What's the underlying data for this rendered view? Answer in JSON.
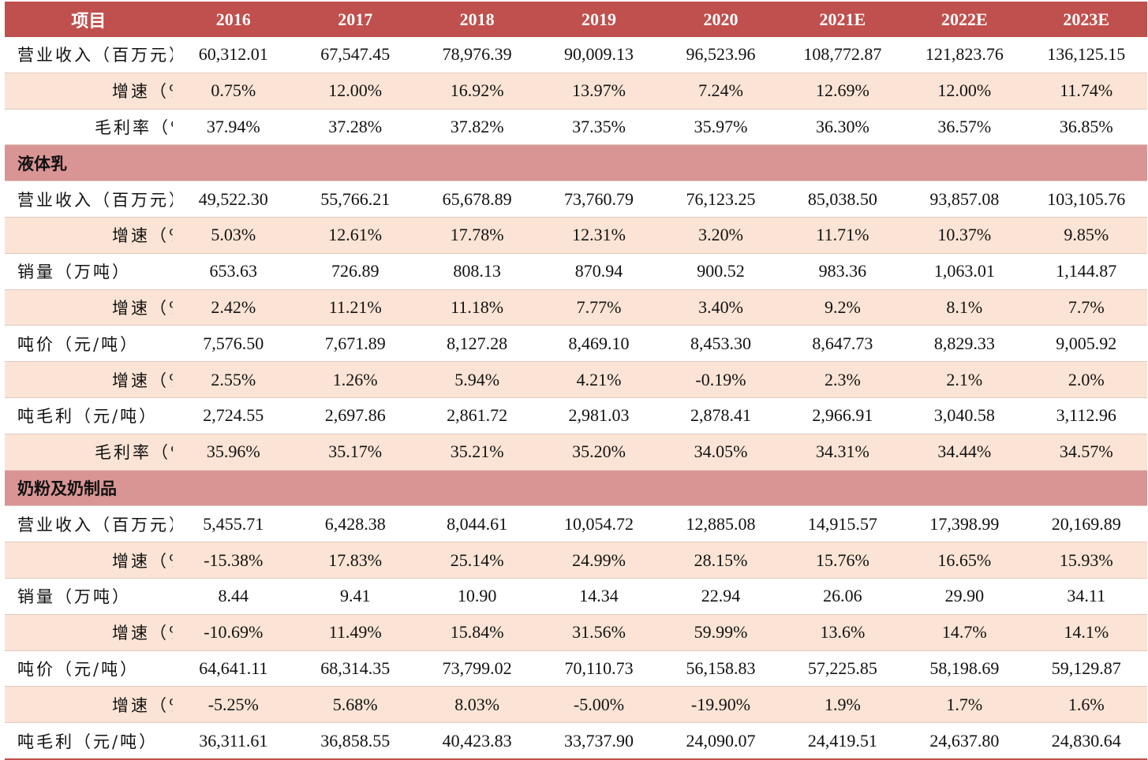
{
  "header": [
    "项目",
    "2016",
    "2017",
    "2018",
    "2019",
    "2020",
    "2021E",
    "2022E",
    "2023E"
  ],
  "rows": [
    {
      "kind": "data",
      "indent": 0,
      "shade": false,
      "label": "营业收入（百万元）",
      "values": [
        "60,312.01",
        "67,547.45",
        "78,976.39",
        "90,009.13",
        "96,523.96",
        "108,772.87",
        "121,823.76",
        "136,125.15"
      ]
    },
    {
      "kind": "data",
      "indent": 1,
      "shade": true,
      "label": "增速（%）",
      "values": [
        "0.75%",
        "12.00%",
        "16.92%",
        "13.97%",
        "7.24%",
        "12.69%",
        "12.00%",
        "11.74%"
      ]
    },
    {
      "kind": "data",
      "indent": 2,
      "shade": false,
      "label": "毛利率（%）",
      "values": [
        "37.94%",
        "37.28%",
        "37.82%",
        "37.35%",
        "35.97%",
        "36.30%",
        "36.57%",
        "36.85%"
      ]
    },
    {
      "kind": "section",
      "label": "液体乳"
    },
    {
      "kind": "data",
      "indent": 0,
      "shade": false,
      "label": "营业收入（百万元）",
      "values": [
        "49,522.30",
        "55,766.21",
        "65,678.89",
        "73,760.79",
        "76,123.25",
        "85,038.50",
        "93,857.08",
        "103,105.76"
      ]
    },
    {
      "kind": "data",
      "indent": 1,
      "shade": true,
      "label": "增速（%）",
      "values": [
        "5.03%",
        "12.61%",
        "17.78%",
        "12.31%",
        "3.20%",
        "11.71%",
        "10.37%",
        "9.85%"
      ]
    },
    {
      "kind": "data",
      "indent": 0,
      "shade": false,
      "label": "销量（万吨）",
      "values": [
        "653.63",
        "726.89",
        "808.13",
        "870.94",
        "900.52",
        "983.36",
        "1,063.01",
        "1,144.87"
      ]
    },
    {
      "kind": "data",
      "indent": 1,
      "shade": true,
      "label": "增速（%）",
      "values": [
        "2.42%",
        "11.21%",
        "11.18%",
        "7.77%",
        "3.40%",
        "9.2%",
        "8.1%",
        "7.7%"
      ]
    },
    {
      "kind": "data",
      "indent": 0,
      "shade": false,
      "label": "吨价（元/吨）",
      "values": [
        "7,576.50",
        "7,671.89",
        "8,127.28",
        "8,469.10",
        "8,453.30",
        "8,647.73",
        "8,829.33",
        "9,005.92"
      ]
    },
    {
      "kind": "data",
      "indent": 1,
      "shade": true,
      "label": "增速（%）",
      "values": [
        "2.55%",
        "1.26%",
        "5.94%",
        "4.21%",
        "-0.19%",
        "2.3%",
        "2.1%",
        "2.0%"
      ]
    },
    {
      "kind": "data",
      "indent": 0,
      "shade": false,
      "label": "吨毛利（元/吨）",
      "values": [
        "2,724.55",
        "2,697.86",
        "2,861.72",
        "2,981.03",
        "2,878.41",
        "2,966.91",
        "3,040.58",
        "3,112.96"
      ]
    },
    {
      "kind": "data",
      "indent": 2,
      "shade": true,
      "label": "毛利率（%）",
      "values": [
        "35.96%",
        "35.17%",
        "35.21%",
        "35.20%",
        "34.05%",
        "34.31%",
        "34.44%",
        "34.57%"
      ]
    },
    {
      "kind": "section",
      "label": "奶粉及奶制品"
    },
    {
      "kind": "data",
      "indent": 0,
      "shade": false,
      "label": "营业收入（百万元）",
      "values": [
        "5,455.71",
        "6,428.38",
        "8,044.61",
        "10,054.72",
        "12,885.08",
        "14,915.57",
        "17,398.99",
        "20,169.89"
      ]
    },
    {
      "kind": "data",
      "indent": 1,
      "shade": true,
      "label": "增速（%）",
      "values": [
        "-15.38%",
        "17.83%",
        "25.14%",
        "24.99%",
        "28.15%",
        "15.76%",
        "16.65%",
        "15.93%"
      ]
    },
    {
      "kind": "data",
      "indent": 0,
      "shade": false,
      "label": "销量（万吨）",
      "values": [
        "8.44",
        "9.41",
        "10.90",
        "14.34",
        "22.94",
        "26.06",
        "29.90",
        "34.11"
      ]
    },
    {
      "kind": "data",
      "indent": 1,
      "shade": true,
      "label": "增速（%）",
      "values": [
        "-10.69%",
        "11.49%",
        "15.84%",
        "31.56%",
        "59.99%",
        "13.6%",
        "14.7%",
        "14.1%"
      ]
    },
    {
      "kind": "data",
      "indent": 0,
      "shade": false,
      "label": "吨价（元/吨）",
      "values": [
        "64,641.11",
        "68,314.35",
        "73,799.02",
        "70,110.73",
        "56,158.83",
        "57,225.85",
        "58,198.69",
        "59,129.87"
      ]
    },
    {
      "kind": "data",
      "indent": 1,
      "shade": true,
      "label": "增速（%）",
      "values": [
        "-5.25%",
        "5.68%",
        "8.03%",
        "-5.00%",
        "-19.90%",
        "1.9%",
        "1.7%",
        "1.6%"
      ]
    },
    {
      "kind": "data",
      "indent": 0,
      "shade": false,
      "label": "吨毛利（元/吨）",
      "values": [
        "36,311.61",
        "36,858.55",
        "40,423.83",
        "33,737.90",
        "24,090.07",
        "24,419.51",
        "24,637.80",
        "24,830.64"
      ]
    }
  ],
  "colors": {
    "header_bg": "#c0504d",
    "section_bg": "#d99594",
    "shade_bg": "#fbe4d5"
  }
}
